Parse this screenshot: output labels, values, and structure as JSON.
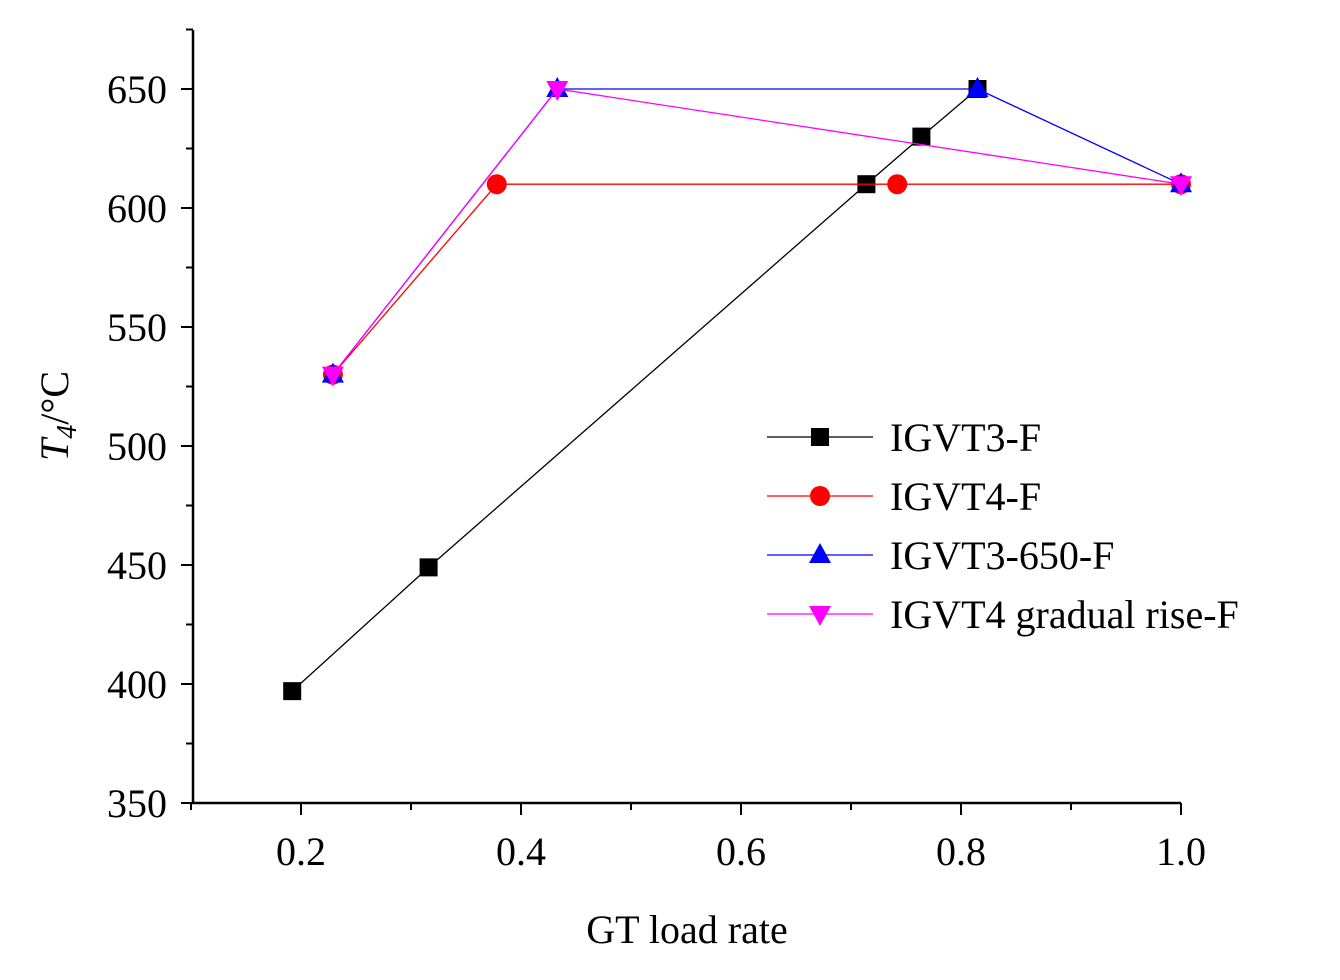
{
  "chart_data": {
    "type": "line",
    "title": "",
    "xlabel": "GT load rate",
    "ylabel": {
      "main": "T",
      "sub": "4",
      "rest": "/°C"
    },
    "xlim": [
      0.1,
      1.0
    ],
    "ylim": [
      350,
      675
    ],
    "xticks": [
      0.2,
      0.4,
      0.6,
      0.8,
      1.0
    ],
    "xtick_labels": [
      "0.2",
      "0.4",
      "0.6",
      "0.8",
      "1.0"
    ],
    "yticks": [
      350,
      400,
      450,
      500,
      550,
      600,
      650
    ],
    "ytick_labels": [
      "350",
      "400",
      "450",
      "500",
      "550",
      "600",
      "650"
    ],
    "grid": false,
    "legend_position": "center-right",
    "series": [
      {
        "name": "IGVT3-F",
        "color": "#000000",
        "marker": "square",
        "x": [
          0.192,
          0.316,
          0.714,
          0.764,
          0.815
        ],
        "y": [
          397,
          449,
          610,
          630,
          650
        ]
      },
      {
        "name": "IGVT4-F",
        "color": "#ff0000",
        "marker": "circle",
        "x": [
          0.229,
          0.378,
          0.742,
          1.0
        ],
        "y": [
          530,
          610,
          610,
          610
        ]
      },
      {
        "name": "IGVT3-650-F",
        "color": "#0000ff",
        "marker": "triangle-up",
        "x": [
          0.229,
          0.433,
          0.815,
          1.0
        ],
        "y": [
          530,
          650,
          650,
          610
        ]
      },
      {
        "name": "IGVT4 gradual rise-F",
        "color": "#ff00ff",
        "marker": "triangle-down",
        "x": [
          0.229,
          0.433,
          1.0
        ],
        "y": [
          530,
          650,
          610
        ]
      }
    ]
  }
}
